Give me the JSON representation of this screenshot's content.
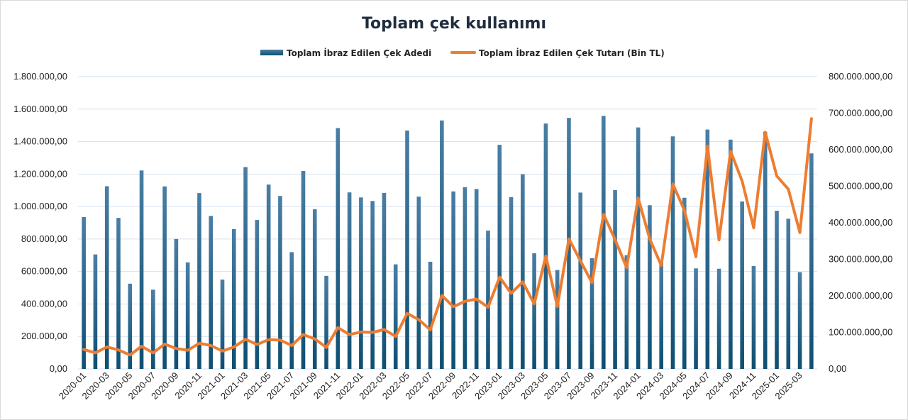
{
  "chart_data": {
    "type": "bar",
    "title": "Toplam çek kullanımı",
    "legend_position": "top",
    "grid": true,
    "x": [
      "2020-01",
      "2020-02",
      "2020-03",
      "2020-04",
      "2020-05",
      "2020-06",
      "2020-07",
      "2020-08",
      "2020-09",
      "2020-10",
      "2020-11",
      "2020-12",
      "2021-01",
      "2021-02",
      "2021-03",
      "2021-04",
      "2021-05",
      "2021-06",
      "2021-07",
      "2021-08",
      "2021-09",
      "2021-10",
      "2021-11",
      "2021-12",
      "2022-01",
      "2022-02",
      "2022-03",
      "2022-04",
      "2022-05",
      "2022-06",
      "2022-07",
      "2022-08",
      "2022-09",
      "2022-10",
      "2022-11",
      "2022-12",
      "2023-01",
      "2023-02",
      "2023-03",
      "2023-04",
      "2023-05",
      "2023-06",
      "2023-07",
      "2023-08",
      "2023-09",
      "2023-10",
      "2023-11",
      "2023-12",
      "2024-01",
      "2024-02",
      "2024-03",
      "2024-04",
      "2024-05",
      "2024-06",
      "2024-07",
      "2024-08",
      "2024-09",
      "2024-10",
      "2024-11",
      "2024-12",
      "2025-01",
      "2025-02",
      "2025-03",
      "2025-04"
    ],
    "x_tick_labels": [
      "2020-01",
      "2020-03",
      "2020-05",
      "2020-07",
      "2020-09",
      "2020-11",
      "2021-01",
      "2021-03",
      "2021-05",
      "2021-07",
      "2021-09",
      "2021-11",
      "2022-01",
      "2022-03",
      "2022-05",
      "2022-07",
      "2022-09",
      "2022-11",
      "2023-01",
      "2023-03",
      "2023-05",
      "2023-07",
      "2023-09",
      "2023-11",
      "2024-01",
      "2024-03",
      "2024-05",
      "2024-07",
      "2024-09",
      "2024-11",
      "2025-01",
      "2025-03"
    ],
    "y_left": {
      "ylim": [
        0,
        1800000
      ],
      "tick_labels": [
        "0,00",
        "200.000,00",
        "400.000,00",
        "600.000,00",
        "800.000,00",
        "1.000.000,00",
        "1.200.000,00",
        "1.400.000,00",
        "1.600.000,00",
        "1.800.000,00"
      ]
    },
    "y_right": {
      "ylim": [
        0,
        800000000
      ],
      "tick_labels": [
        "0,00",
        "100.000.000,00",
        "200.000.000,00",
        "300.000.000,00",
        "400.000.000,00",
        "500.000.000,00",
        "600.000.000,00",
        "700.000.000,00",
        "800.000.000,00"
      ]
    },
    "series": [
      {
        "name": "Toplam İbraz Edilen Çek Adedi",
        "type": "bar",
        "axis": "left",
        "color": "#1f6a8f",
        "values": [
          935000,
          705000,
          1125000,
          930000,
          525000,
          1222000,
          488000,
          1124000,
          800000,
          656000,
          1083000,
          942000,
          550000,
          861000,
          1243000,
          917000,
          1135000,
          1065000,
          719000,
          1219000,
          983000,
          573000,
          1483000,
          1087000,
          1056000,
          1034000,
          1084000,
          644000,
          1468000,
          1061000,
          660000,
          1530000,
          1093000,
          1119000,
          1108000,
          852000,
          1380000,
          1058000,
          1199000,
          712000,
          1511000,
          609000,
          1546000,
          1086000,
          682000,
          1558000,
          1101000,
          700000,
          1487000,
          1008000,
          665000,
          1432000,
          1054000,
          619000,
          1474000,
          617000,
          1412000,
          1031000,
          634000,
          1460000,
          974000,
          925000,
          596000,
          1327000
        ]
      },
      {
        "name": "Toplam İbraz Edilen Çek Tutarı (Bin TL)",
        "type": "line",
        "axis": "right",
        "color": "#ed7d31",
        "values": [
          53000000,
          44000000,
          60000000,
          52000000,
          38000000,
          62000000,
          44000000,
          68000000,
          56000000,
          51000000,
          70000000,
          64000000,
          49000000,
          60000000,
          81000000,
          67000000,
          80000000,
          79000000,
          64000000,
          94000000,
          82000000,
          59000000,
          113000000,
          94000000,
          101000000,
          100000000,
          108000000,
          89000000,
          152000000,
          135000000,
          107000000,
          201000000,
          170000000,
          185000000,
          191000000,
          169000000,
          251000000,
          207000000,
          238000000,
          178000000,
          309000000,
          171000000,
          356000000,
          296000000,
          236000000,
          423000000,
          354000000,
          277000000,
          468000000,
          356000000,
          283000000,
          506000000,
          434000000,
          307000000,
          610000000,
          353000000,
          596000000,
          514000000,
          386000000,
          648000000,
          528000000,
          492000000,
          373000000,
          685000000
        ]
      }
    ]
  }
}
